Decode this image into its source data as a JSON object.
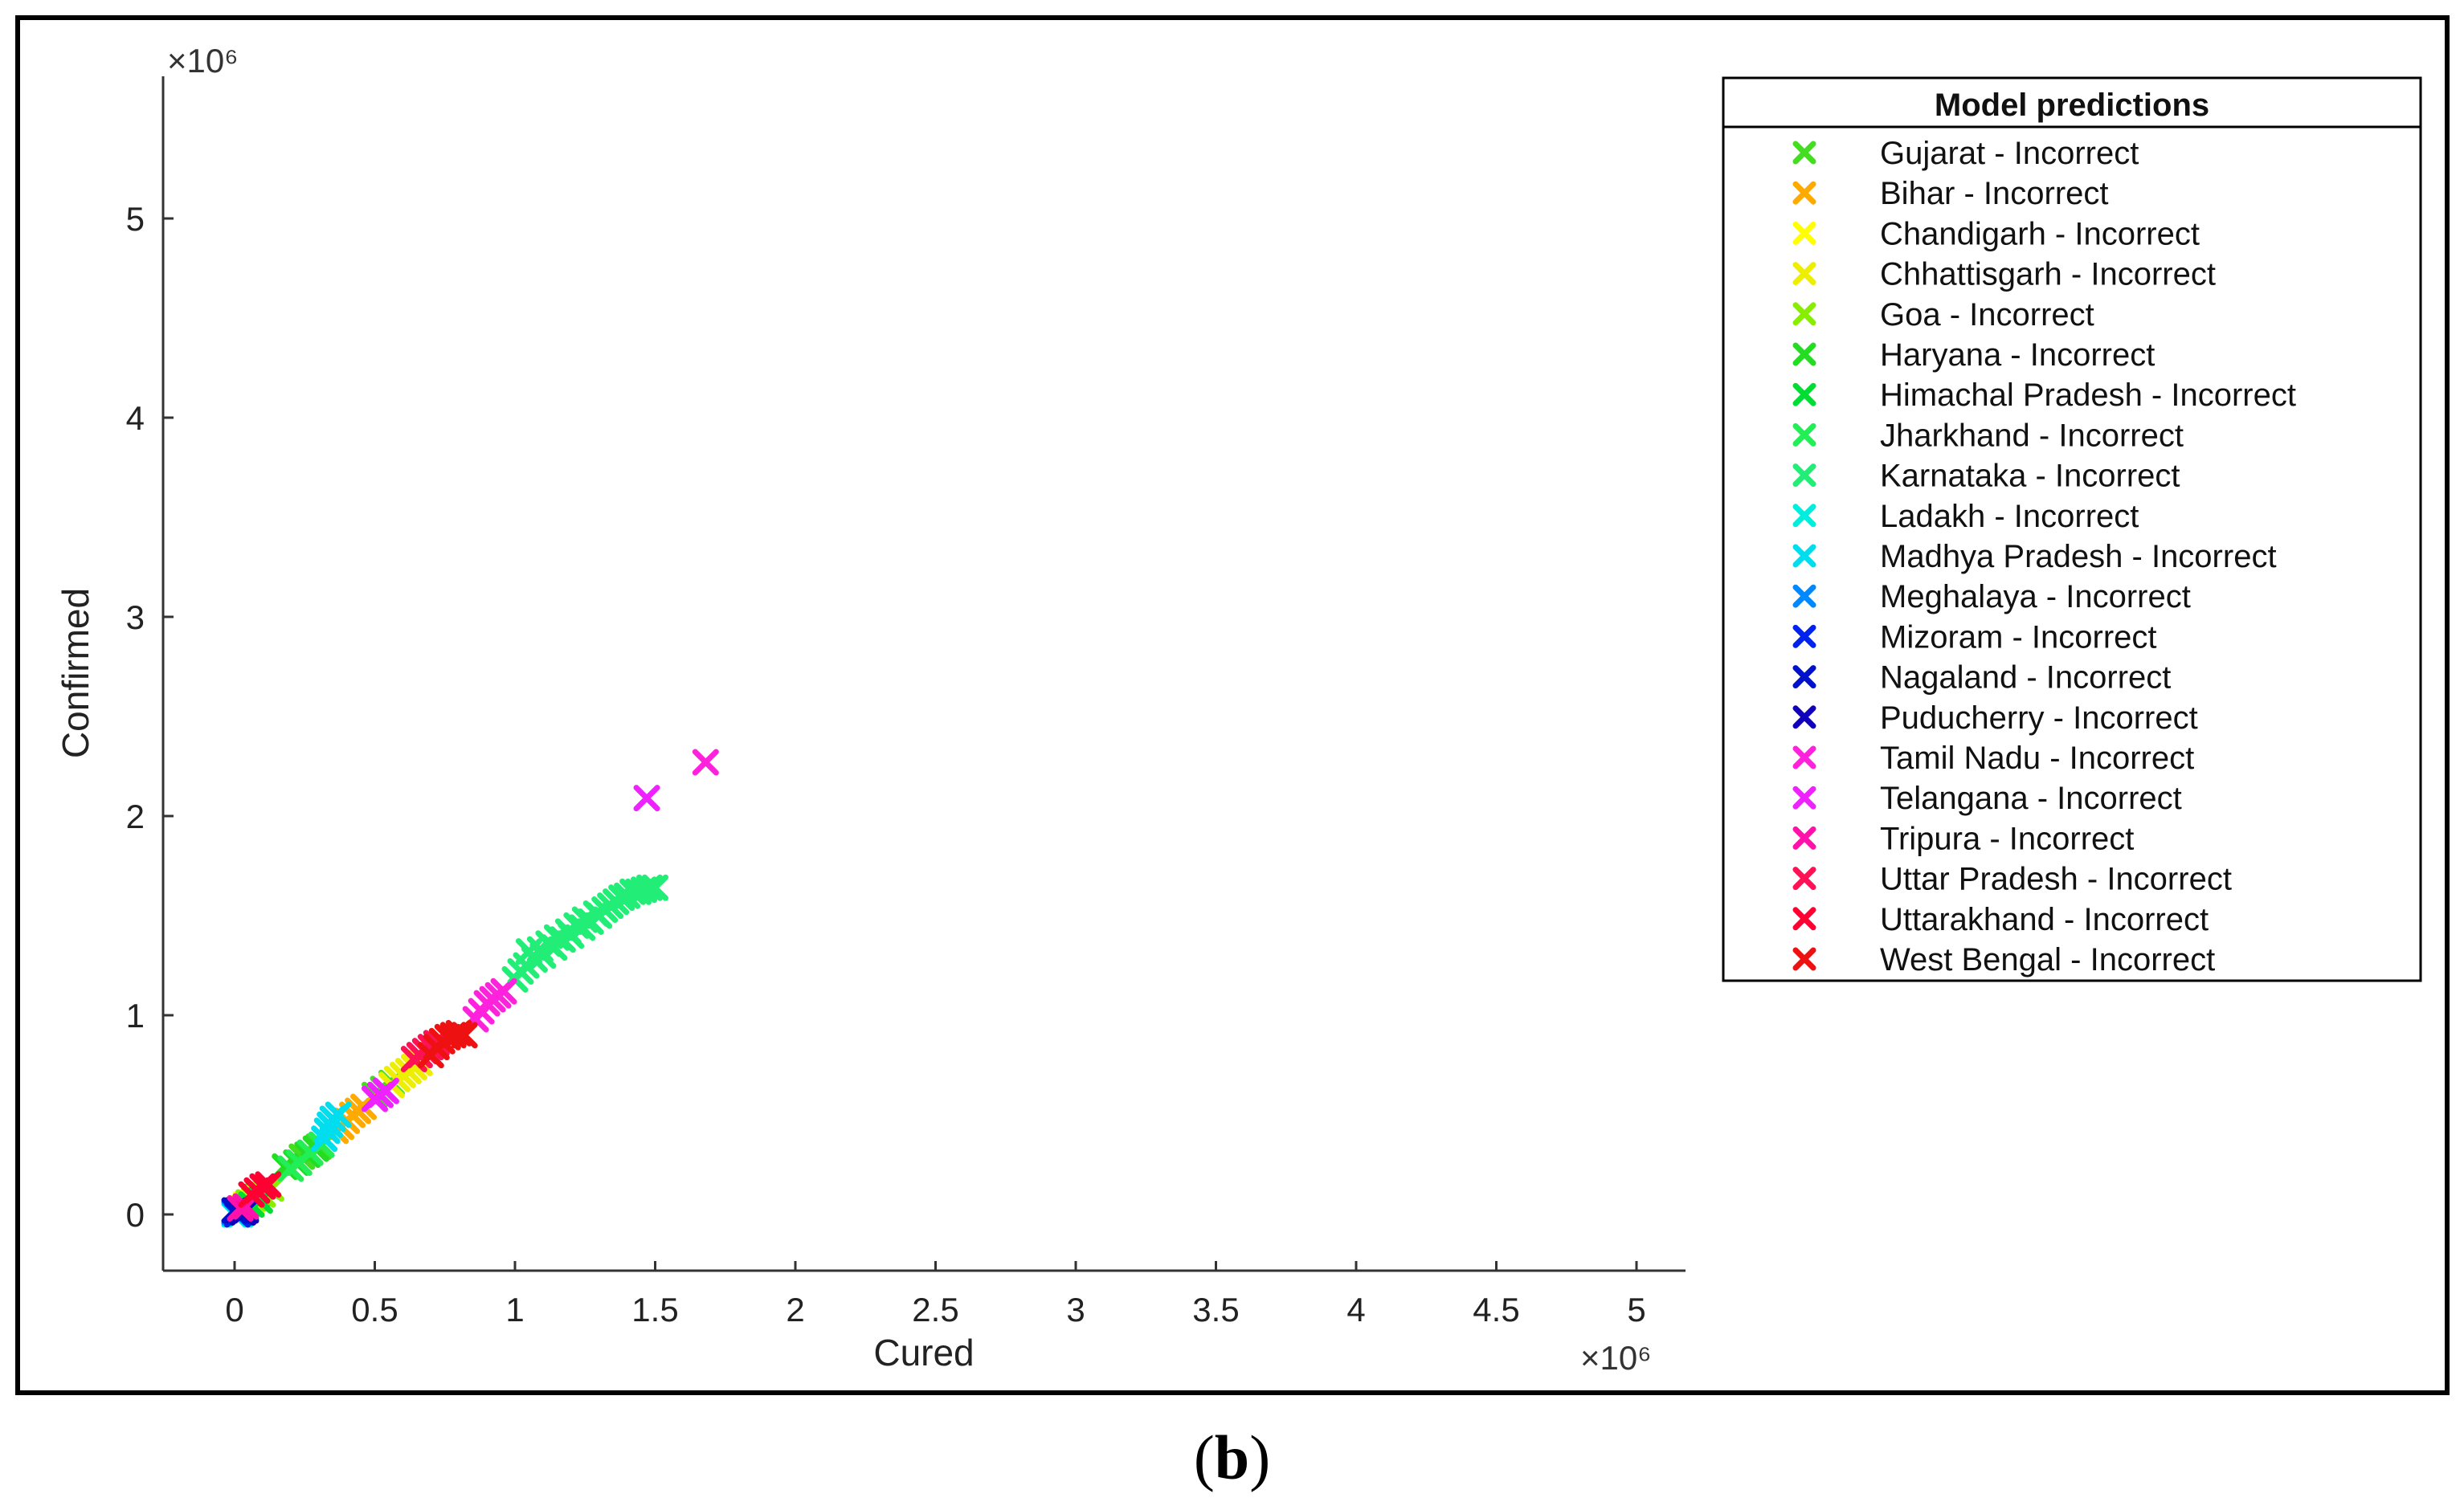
{
  "caption": {
    "open": "(",
    "letter": "b",
    "close": ")"
  },
  "chart_data": {
    "type": "scatter",
    "title": "",
    "xlabel": "Cured",
    "ylabel": "Confirmed",
    "x_exponent_label": "×10⁶",
    "y_exponent_label": "×10⁶",
    "xlim": [
      -0.25,
      5.2
    ],
    "ylim": [
      -0.27,
      5.75
    ],
    "x_ticks": [
      0,
      0.5,
      1,
      1.5,
      2,
      2.5,
      3,
      3.5,
      4,
      4.5,
      5
    ],
    "x_tick_labels": [
      "0",
      "0.5",
      "1",
      "1.5",
      "2",
      "2.5",
      "3",
      "3.5",
      "4",
      "4.5",
      "5"
    ],
    "y_ticks": [
      0,
      1,
      2,
      3,
      4,
      5
    ],
    "y_tick_labels": [
      "0",
      "1",
      "2",
      "3",
      "4",
      "5"
    ],
    "marker": "x",
    "legend": {
      "title": "Model predictions",
      "position": "top-right, outside plot area"
    },
    "series": [
      {
        "name": "Gujarat - Incorrect",
        "color": "#44dd22",
        "points": [
          [
            0.02,
            0.03
          ],
          [
            0.05,
            0.06
          ],
          [
            0.08,
            0.09
          ],
          [
            0.12,
            0.14
          ],
          [
            0.18,
            0.24
          ],
          [
            0.24,
            0.29
          ],
          [
            0.3,
            0.34
          ],
          [
            0.5,
            0.6
          ],
          [
            0.53,
            0.63
          ],
          [
            0.56,
            0.66
          ]
        ]
      },
      {
        "name": "Bihar - Incorrect",
        "color": "#ffaa00",
        "points": [
          [
            0.36,
            0.42
          ],
          [
            0.38,
            0.44
          ],
          [
            0.4,
            0.47
          ],
          [
            0.42,
            0.5
          ],
          [
            0.44,
            0.52
          ],
          [
            0.46,
            0.54
          ]
        ]
      },
      {
        "name": "Chandigarh - Incorrect",
        "color": "#ffff00",
        "points": [
          [
            0.03,
            0.03
          ],
          [
            0.04,
            0.05
          ],
          [
            0.06,
            0.06
          ],
          [
            0.08,
            0.08
          ]
        ]
      },
      {
        "name": "Chhattisgarh - Incorrect",
        "color": "#eeee00",
        "points": [
          [
            0.56,
            0.65
          ],
          [
            0.58,
            0.68
          ],
          [
            0.6,
            0.7
          ],
          [
            0.62,
            0.72
          ],
          [
            0.64,
            0.74
          ],
          [
            0.66,
            0.76
          ]
        ]
      },
      {
        "name": "Goa - Incorrect",
        "color": "#88ee00",
        "points": [
          [
            0.05,
            0.06
          ],
          [
            0.07,
            0.08
          ],
          [
            0.1,
            0.1
          ],
          [
            0.13,
            0.13
          ]
        ]
      },
      {
        "name": "Haryana - Incorrect",
        "color": "#22dd22",
        "points": [
          [
            0.18,
            0.24
          ],
          [
            0.22,
            0.26
          ],
          [
            0.26,
            0.3
          ],
          [
            0.29,
            0.33
          ]
        ]
      },
      {
        "name": "Himachal Pradesh - Incorrect",
        "color": "#00dd33",
        "points": [
          [
            0.02,
            0.02
          ],
          [
            0.04,
            0.04
          ],
          [
            0.06,
            0.05
          ],
          [
            0.09,
            0.07
          ]
        ]
      },
      {
        "name": "Jharkhand - Incorrect",
        "color": "#22ee55",
        "points": [
          [
            0.2,
            0.23
          ],
          [
            0.23,
            0.26
          ],
          [
            0.27,
            0.31
          ],
          [
            0.31,
            0.35
          ]
        ]
      },
      {
        "name": "Karnataka - Incorrect",
        "color": "#22ee77",
        "points": [
          [
            1.0,
            1.18
          ],
          [
            1.02,
            1.22
          ],
          [
            1.04,
            1.25
          ],
          [
            1.05,
            1.32
          ],
          [
            1.07,
            1.28
          ],
          [
            1.09,
            1.33
          ],
          [
            1.1,
            1.3
          ],
          [
            1.12,
            1.36
          ],
          [
            1.14,
            1.34
          ],
          [
            1.15,
            1.39
          ],
          [
            1.17,
            1.38
          ],
          [
            1.19,
            1.42
          ],
          [
            1.2,
            1.4
          ],
          [
            1.22,
            1.45
          ],
          [
            1.24,
            1.44
          ],
          [
            1.25,
            1.48
          ],
          [
            1.27,
            1.47
          ],
          [
            1.29,
            1.51
          ],
          [
            1.3,
            1.5
          ],
          [
            1.32,
            1.53
          ],
          [
            1.34,
            1.55
          ],
          [
            1.36,
            1.57
          ],
          [
            1.38,
            1.59
          ],
          [
            1.4,
            1.6
          ],
          [
            1.42,
            1.62
          ],
          [
            1.44,
            1.62
          ],
          [
            1.46,
            1.63
          ],
          [
            1.48,
            1.64
          ],
          [
            1.5,
            1.64
          ]
        ]
      },
      {
        "name": "Ladakh - Incorrect",
        "color": "#00eedd",
        "points": [
          [
            0.0,
            0.0
          ],
          [
            0.01,
            0.01
          ],
          [
            0.02,
            0.0
          ],
          [
            0.03,
            0.02
          ]
        ]
      },
      {
        "name": "Madhya Pradesh - Incorrect",
        "color": "#00ddee",
        "points": [
          [
            0.32,
            0.38
          ],
          [
            0.33,
            0.42
          ],
          [
            0.34,
            0.45
          ],
          [
            0.35,
            0.48
          ],
          [
            0.37,
            0.5
          ]
        ]
      },
      {
        "name": "Meghalaya - Incorrect",
        "color": "#0088ff",
        "points": [
          [
            0.0,
            0.01
          ],
          [
            0.02,
            0.02
          ],
          [
            0.04,
            0.03
          ]
        ]
      },
      {
        "name": "Mizoram - Incorrect",
        "color": "#0022ee",
        "points": [
          [
            0.01,
            0.0
          ],
          [
            0.02,
            0.01
          ]
        ]
      },
      {
        "name": "Nagaland - Incorrect",
        "color": "#0011cc",
        "points": [
          [
            0.0,
            0.02
          ],
          [
            0.01,
            0.02
          ]
        ]
      },
      {
        "name": "Puducherry - Incorrect",
        "color": "#1100bb",
        "points": [
          [
            0.03,
            0.01
          ],
          [
            0.04,
            0.02
          ]
        ]
      },
      {
        "name": "Tamil Nadu - Incorrect",
        "color": "#ff22dd",
        "points": [
          [
            0.86,
            0.98
          ],
          [
            0.88,
            1.02
          ],
          [
            0.9,
            1.06
          ],
          [
            0.92,
            1.08
          ],
          [
            0.94,
            1.1
          ],
          [
            0.96,
            1.12
          ],
          [
            1.68,
            2.27
          ]
        ]
      },
      {
        "name": "Telangana - Incorrect",
        "color": "#ee22ff",
        "points": [
          [
            0.5,
            0.58
          ],
          [
            0.52,
            0.6
          ],
          [
            0.54,
            0.62
          ],
          [
            1.47,
            2.09
          ]
        ]
      },
      {
        "name": "Tripura - Incorrect",
        "color": "#ff11aa",
        "points": [
          [
            0.02,
            0.03
          ],
          [
            0.04,
            0.04
          ]
        ]
      },
      {
        "name": "Uttar Pradesh - Incorrect",
        "color": "#ff1155",
        "points": [
          [
            0.64,
            0.78
          ],
          [
            0.66,
            0.8
          ],
          [
            0.68,
            0.82
          ],
          [
            0.7,
            0.84
          ],
          [
            0.72,
            0.86
          ]
        ]
      },
      {
        "name": "Uttarakhand - Incorrect",
        "color": "#ff0033",
        "points": [
          [
            0.06,
            0.1
          ],
          [
            0.08,
            0.12
          ],
          [
            0.1,
            0.14
          ],
          [
            0.12,
            0.15
          ]
        ]
      },
      {
        "name": "West Bengal - Incorrect",
        "color": "#ee1111",
        "points": [
          [
            0.7,
            0.8
          ],
          [
            0.72,
            0.84
          ],
          [
            0.74,
            0.87
          ],
          [
            0.76,
            0.89
          ],
          [
            0.78,
            0.9
          ],
          [
            0.8,
            0.91
          ],
          [
            0.82,
            0.9
          ]
        ]
      }
    ]
  }
}
